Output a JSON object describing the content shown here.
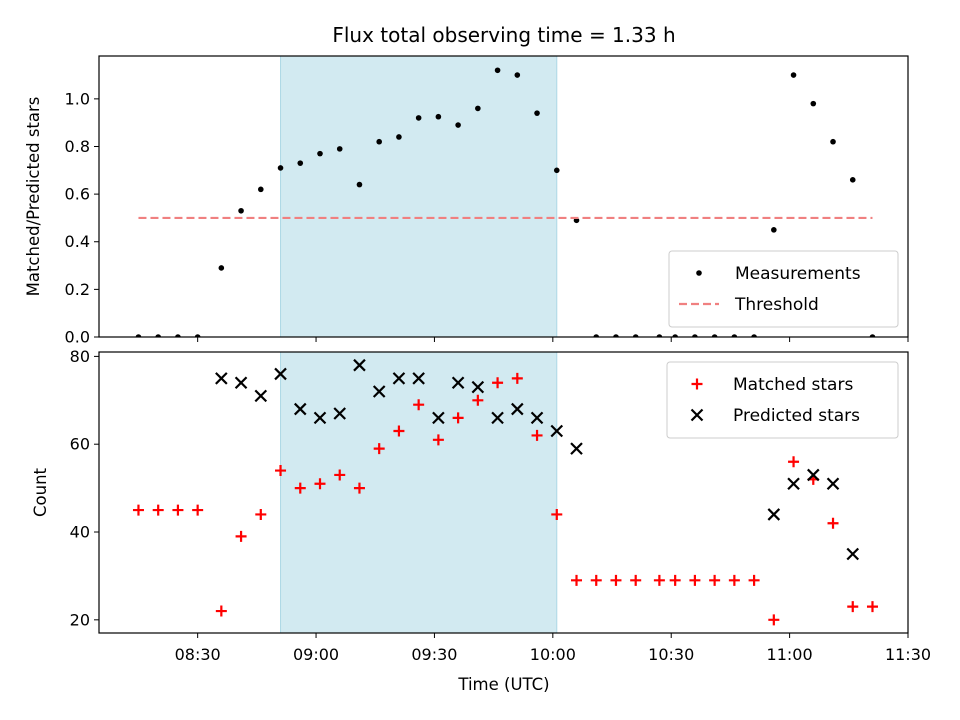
{
  "chart_data": {
    "type": "scatter",
    "title": "Flux total observing time = 1.33 h",
    "xlabel": "Time (UTC)",
    "x_ticks": [
      "08:30",
      "09:00",
      "09:30",
      "10:00",
      "10:30",
      "11:00",
      "11:30"
    ],
    "x_range": [
      "08:05",
      "11:30"
    ],
    "shaded_span": [
      "08:51",
      "10:01"
    ],
    "colors": {
      "shade": "#add8e6",
      "matched": "#ff0000",
      "predicted": "#000000",
      "threshold": "#f08080",
      "measurements": "#000000"
    },
    "panels": [
      {
        "ylabel": "Matched/Predicted stars",
        "ylim": [
          0,
          1.18
        ],
        "y_ticks": [
          "0.0",
          "0.2",
          "0.4",
          "0.6",
          "0.8",
          "1.0"
        ],
        "legend_position": "lower right",
        "series": [
          {
            "name": "Measurements",
            "marker": "dot",
            "points": [
              [
                "08:15",
                0
              ],
              [
                "08:20",
                0
              ],
              [
                "08:25",
                0
              ],
              [
                "08:30",
                0
              ],
              [
                "08:36",
                0.29
              ],
              [
                "08:41",
                0.53
              ],
              [
                "08:46",
                0.62
              ],
              [
                "08:51",
                0.71
              ],
              [
                "08:56",
                0.73
              ],
              [
                "09:01",
                0.77
              ],
              [
                "09:06",
                0.79
              ],
              [
                "09:11",
                0.64
              ],
              [
                "09:16",
                0.82
              ],
              [
                "09:21",
                0.84
              ],
              [
                "09:26",
                0.92
              ],
              [
                "09:31",
                0.925
              ],
              [
                "09:36",
                0.89
              ],
              [
                "09:41",
                0.96
              ],
              [
                "09:46",
                1.12
              ],
              [
                "09:51",
                1.1
              ],
              [
                "09:56",
                0.94
              ],
              [
                "10:01",
                0.7
              ],
              [
                "10:06",
                0.49
              ],
              [
                "10:11",
                0
              ],
              [
                "10:16",
                0
              ],
              [
                "10:21",
                0
              ],
              [
                "10:27",
                0
              ],
              [
                "10:31",
                0
              ],
              [
                "10:36",
                0
              ],
              [
                "10:41",
                0
              ],
              [
                "10:46",
                0
              ],
              [
                "10:51",
                0
              ],
              [
                "10:56",
                0.45
              ],
              [
                "11:01",
                1.1
              ],
              [
                "11:06",
                0.98
              ],
              [
                "11:11",
                0.82
              ],
              [
                "11:16",
                0.66
              ],
              [
                "11:21",
                0
              ]
            ]
          },
          {
            "name": "Threshold",
            "marker": "dashed-line",
            "points": [
              [
                "08:15",
                0.5
              ],
              [
                "11:21",
                0.5
              ]
            ]
          }
        ]
      },
      {
        "ylabel": "Count",
        "ylim": [
          17,
          81
        ],
        "y_ticks": [
          "20",
          "40",
          "60",
          "80"
        ],
        "legend_position": "upper right",
        "series": [
          {
            "name": "Matched stars",
            "marker": "plus",
            "points": [
              [
                "08:15",
                45
              ],
              [
                "08:20",
                45
              ],
              [
                "08:25",
                45
              ],
              [
                "08:30",
                45
              ],
              [
                "08:36",
                22
              ],
              [
                "08:41",
                39
              ],
              [
                "08:46",
                44
              ],
              [
                "08:51",
                54
              ],
              [
                "08:56",
                50
              ],
              [
                "09:01",
                51
              ],
              [
                "09:06",
                53
              ],
              [
                "09:11",
                50
              ],
              [
                "09:16",
                59
              ],
              [
                "09:21",
                63
              ],
              [
                "09:26",
                69
              ],
              [
                "09:31",
                61
              ],
              [
                "09:36",
                66
              ],
              [
                "09:41",
                70
              ],
              [
                "09:46",
                74
              ],
              [
                "09:51",
                75
              ],
              [
                "09:56",
                62
              ],
              [
                "10:01",
                44
              ],
              [
                "10:06",
                29
              ],
              [
                "10:11",
                29
              ],
              [
                "10:16",
                29
              ],
              [
                "10:21",
                29
              ],
              [
                "10:27",
                29
              ],
              [
                "10:31",
                29
              ],
              [
                "10:36",
                29
              ],
              [
                "10:41",
                29
              ],
              [
                "10:46",
                29
              ],
              [
                "10:51",
                29
              ],
              [
                "10:56",
                20
              ],
              [
                "11:01",
                56
              ],
              [
                "11:06",
                52
              ],
              [
                "11:11",
                42
              ],
              [
                "11:16",
                23
              ],
              [
                "11:21",
                23
              ]
            ]
          },
          {
            "name": "Predicted stars",
            "marker": "x",
            "points": [
              [
                "08:36",
                75
              ],
              [
                "08:41",
                74
              ],
              [
                "08:46",
                71
              ],
              [
                "08:51",
                76
              ],
              [
                "08:56",
                68
              ],
              [
                "09:01",
                66
              ],
              [
                "09:06",
                67
              ],
              [
                "09:11",
                78
              ],
              [
                "09:16",
                72
              ],
              [
                "09:21",
                75
              ],
              [
                "09:26",
                75
              ],
              [
                "09:31",
                66
              ],
              [
                "09:36",
                74
              ],
              [
                "09:41",
                73
              ],
              [
                "09:46",
                66
              ],
              [
                "09:51",
                68
              ],
              [
                "09:56",
                66
              ],
              [
                "10:01",
                63
              ],
              [
                "10:06",
                59
              ],
              [
                "10:56",
                44
              ],
              [
                "11:01",
                51
              ],
              [
                "11:06",
                53
              ],
              [
                "11:11",
                51
              ],
              [
                "11:16",
                35
              ]
            ]
          }
        ]
      }
    ]
  }
}
